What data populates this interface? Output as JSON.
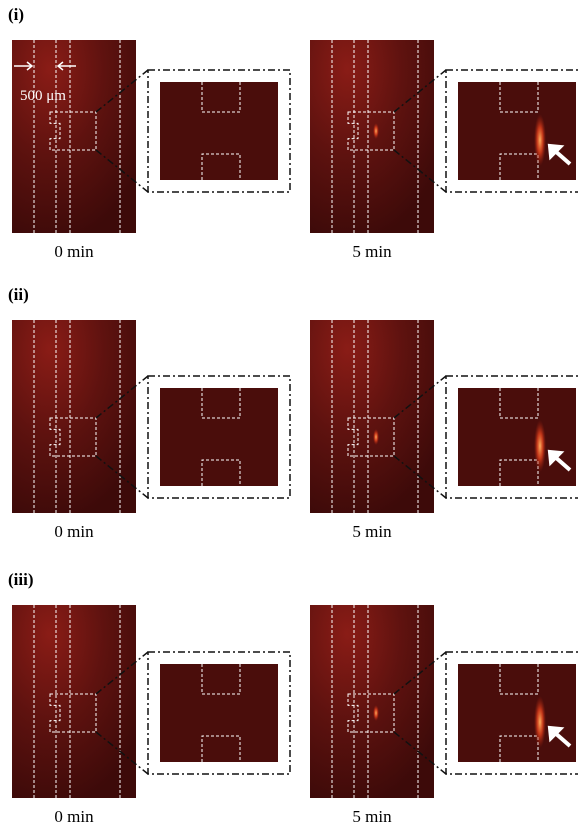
{
  "scale_bar": "500 μm",
  "panels": [
    {
      "label": "(i)",
      "frames": [
        {
          "time": "0 min"
        },
        {
          "time": "5 min"
        }
      ]
    },
    {
      "label": "(ii)",
      "frames": [
        {
          "time": "0 min"
        },
        {
          "time": "5 min"
        }
      ]
    },
    {
      "label": "(iii)",
      "frames": [
        {
          "time": "0 min"
        },
        {
          "time": "5 min"
        }
      ]
    }
  ]
}
